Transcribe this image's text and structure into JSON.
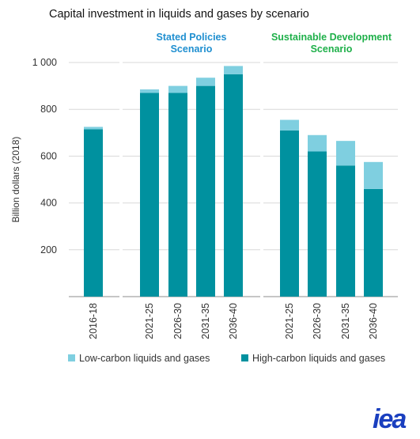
{
  "chart_data": {
    "type": "bar",
    "stacked": true,
    "title": "Capital investment in liquids and gases by scenario",
    "ylabel": "Billion dollars (2018)",
    "ylim": [
      0,
      1000
    ],
    "yticks": [
      200,
      400,
      600,
      800,
      1000
    ],
    "ytick_labels": [
      "200",
      "400",
      "600",
      "800",
      "1 000"
    ],
    "grid": true,
    "legend_position": "bottom",
    "groups": [
      {
        "label": "",
        "color": "#000000",
        "categories": [
          "2016-18"
        ]
      },
      {
        "label": "Stated Policies Scenario",
        "label_lines": [
          "Stated Policies",
          "Scenario"
        ],
        "color": "#1f8fd0",
        "categories": [
          "2021-25",
          "2026-30",
          "2031-35",
          "2036-40"
        ]
      },
      {
        "label": "Sustainable Development Scenario",
        "label_lines": [
          "Sustainable Development",
          "Scenario"
        ],
        "color": "#1fb04a",
        "categories": [
          "2021-25",
          "2026-30",
          "2031-35",
          "2036-40"
        ]
      }
    ],
    "categories": [
      "2016-18",
      "2021-25",
      "2026-30",
      "2031-35",
      "2036-40",
      "2021-25",
      "2026-30",
      "2031-35",
      "2036-40"
    ],
    "series": [
      {
        "name": "High-carbon liquids and gases",
        "color": "#00919f",
        "values": [
          715,
          870,
          870,
          900,
          950,
          710,
          620,
          560,
          460
        ]
      },
      {
        "name": "Low-carbon liquids and gases",
        "color": "#7fcfe0",
        "values": [
          10,
          15,
          30,
          35,
          35,
          45,
          70,
          105,
          115
        ]
      }
    ],
    "legend_order": [
      "Low-carbon liquids and gases",
      "High-carbon liquids and gases"
    ]
  },
  "logo": {
    "text": "iea",
    "color": "#1a3fbf"
  }
}
